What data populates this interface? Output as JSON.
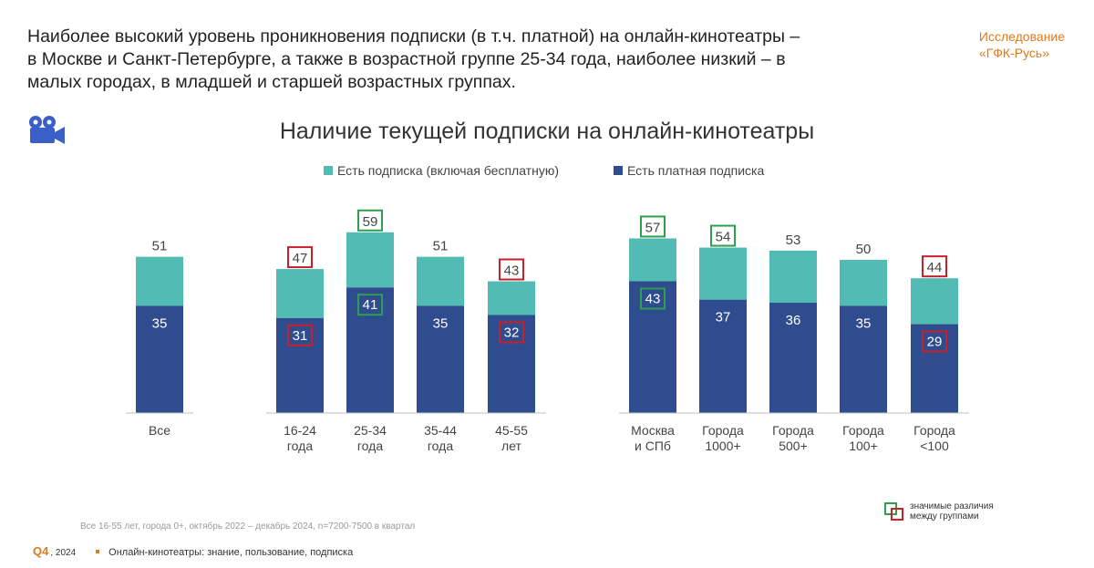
{
  "headline": {
    "line1": "Наиболее высокий уровень проникновения подписки (в т.ч. платной) на онлайн-кинотеатры –",
    "line2": "в Москве и Санкт-Петербурге, а также в возрастной группе 25-34 года, наиболее низкий – в",
    "line3": "малых городах, в младшей и старшей возрастных группах."
  },
  "brand": {
    "line1": "Исследование",
    "line2": "«ГФК-Русь»"
  },
  "icon": "film-camera-icon",
  "colors": {
    "any_subscription": "#52bbb3",
    "paid_subscription": "#2f4d8e",
    "significant_high": "#2e9e4f",
    "significant_low": "#c8202a",
    "brand": "#e07a1f"
  },
  "chart_data": {
    "type": "bar",
    "stacking": "overlay",
    "title": "Наличие текущей подписки на онлайн-кинотеатры",
    "legend_position": "top",
    "grid": false,
    "ylim": [
      0,
      70
    ],
    "categories": [
      [
        "Все"
      ],
      [
        "16-24",
        "года"
      ],
      [
        "25-34",
        "года"
      ],
      [
        "35-44",
        "года"
      ],
      [
        "45-55",
        "лет"
      ],
      [
        "Москва",
        "и СПб"
      ],
      [
        "Города",
        "1000+"
      ],
      [
        "Города",
        "500+"
      ],
      [
        "Города",
        "100+"
      ],
      [
        "Города",
        "<100"
      ]
    ],
    "series": [
      {
        "name": "Есть подписка (включая бесплатную)",
        "values": [
          51,
          47,
          59,
          51,
          43,
          57,
          54,
          53,
          50,
          44
        ],
        "significance": [
          "",
          "low",
          "high",
          "",
          "low",
          "high",
          "high",
          "",
          "",
          "low"
        ]
      },
      {
        "name": "Есть платная подписка",
        "values": [
          35,
          31,
          41,
          35,
          32,
          43,
          37,
          36,
          35,
          29
        ],
        "significance": [
          "",
          "low",
          "high",
          "",
          "low",
          "high",
          "",
          "",
          "",
          "low"
        ]
      }
    ]
  },
  "significance_legend": {
    "line1": "значимые различия",
    "line2": "между группами"
  },
  "footnote": "Все 16-55 лет, города 0+, октябрь 2022 – декабрь 2024, n=7200-7500 в квартал",
  "footer": {
    "quarter": "Q4",
    "year": "2024",
    "section": "Онлайн-кинотеатры: знание, пользование, подписка"
  }
}
